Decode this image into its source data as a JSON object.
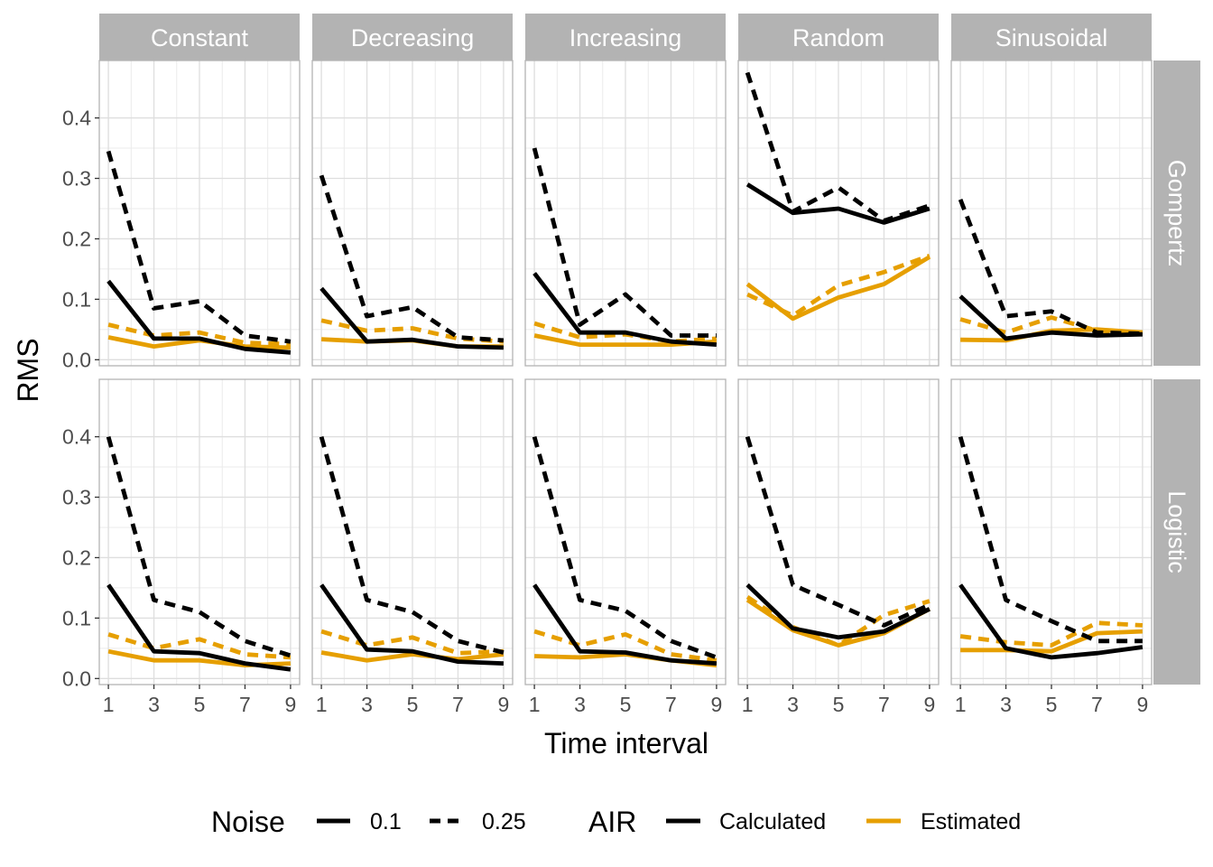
{
  "chart_data": {
    "type": "line",
    "xlabel": "Time interval",
    "ylabel": "RMS",
    "x": [
      1,
      3,
      5,
      7,
      9
    ],
    "x_ticks": [
      "1",
      "3",
      "5",
      "7",
      "9"
    ],
    "xlim": [
      0.6,
      9.4
    ],
    "y_ticks": [
      "0.0",
      "0.1",
      "0.2",
      "0.3",
      "0.4"
    ],
    "ylim": [
      -0.01,
      0.495
    ],
    "grid": true,
    "columns": [
      "Constant",
      "Decreasing",
      "Increasing",
      "Random",
      "Sinusoidal"
    ],
    "rows": [
      "Gompertz",
      "Logistic"
    ],
    "legend": {
      "position": "bottom",
      "noise_title": "Noise",
      "noise_levels": [
        "0.1",
        "0.25"
      ],
      "air_title": "AIR",
      "air_levels": [
        "Calculated",
        "Estimated"
      ]
    },
    "colors": {
      "Calculated": "#000000",
      "Estimated": "#E69F00"
    },
    "panels": [
      {
        "row": "Gompertz",
        "column": "Constant",
        "series": [
          {
            "noise": "0.1",
            "air": "Calculated",
            "values": [
              0.13,
              0.035,
              0.035,
              0.018,
              0.012
            ]
          },
          {
            "noise": "0.25",
            "air": "Calculated",
            "values": [
              0.345,
              0.085,
              0.097,
              0.04,
              0.03
            ]
          },
          {
            "noise": "0.1",
            "air": "Estimated",
            "values": [
              0.037,
              0.022,
              0.032,
              0.022,
              0.02
            ]
          },
          {
            "noise": "0.25",
            "air": "Estimated",
            "values": [
              0.058,
              0.04,
              0.045,
              0.028,
              0.026
            ]
          }
        ]
      },
      {
        "row": "Gompertz",
        "column": "Decreasing",
        "series": [
          {
            "noise": "0.1",
            "air": "Calculated",
            "values": [
              0.118,
              0.03,
              0.033,
              0.022,
              0.02
            ]
          },
          {
            "noise": "0.25",
            "air": "Calculated",
            "values": [
              0.305,
              0.072,
              0.087,
              0.037,
              0.032
            ]
          },
          {
            "noise": "0.1",
            "air": "Estimated",
            "values": [
              0.034,
              0.03,
              0.032,
              0.022,
              0.022
            ]
          },
          {
            "noise": "0.25",
            "air": "Estimated",
            "values": [
              0.065,
              0.048,
              0.052,
              0.035,
              0.03
            ]
          }
        ]
      },
      {
        "row": "Gompertz",
        "column": "Increasing",
        "series": [
          {
            "noise": "0.1",
            "air": "Calculated",
            "values": [
              0.143,
              0.045,
              0.045,
              0.03,
              0.025
            ]
          },
          {
            "noise": "0.25",
            "air": "Calculated",
            "values": [
              0.35,
              0.058,
              0.108,
              0.04,
              0.04
            ]
          },
          {
            "noise": "0.1",
            "air": "Estimated",
            "values": [
              0.04,
              0.025,
              0.025,
              0.025,
              0.03
            ]
          },
          {
            "noise": "0.25",
            "air": "Estimated",
            "values": [
              0.06,
              0.037,
              0.042,
              0.03,
              0.035
            ]
          }
        ]
      },
      {
        "row": "Gompertz",
        "column": "Random",
        "series": [
          {
            "noise": "0.1",
            "air": "Calculated",
            "values": [
              0.29,
              0.243,
              0.25,
              0.227,
              0.25
            ]
          },
          {
            "noise": "0.25",
            "air": "Calculated",
            "values": [
              0.475,
              0.245,
              0.285,
              0.23,
              0.255
            ]
          },
          {
            "noise": "0.1",
            "air": "Estimated",
            "values": [
              0.125,
              0.068,
              0.103,
              0.125,
              0.17
            ]
          },
          {
            "noise": "0.25",
            "air": "Estimated",
            "values": [
              0.108,
              0.073,
              0.123,
              0.145,
              0.172
            ]
          }
        ]
      },
      {
        "row": "Gompertz",
        "column": "Sinusoidal",
        "series": [
          {
            "noise": "0.1",
            "air": "Calculated",
            "values": [
              0.105,
              0.035,
              0.045,
              0.04,
              0.042
            ]
          },
          {
            "noise": "0.25",
            "air": "Calculated",
            "values": [
              0.265,
              0.072,
              0.08,
              0.045,
              0.043
            ]
          },
          {
            "noise": "0.1",
            "air": "Estimated",
            "values": [
              0.033,
              0.032,
              0.048,
              0.05,
              0.045
            ]
          },
          {
            "noise": "0.25",
            "air": "Estimated",
            "values": [
              0.067,
              0.045,
              0.07,
              0.048,
              0.045
            ]
          }
        ]
      },
      {
        "row": "Logistic",
        "column": "Constant",
        "series": [
          {
            "noise": "0.1",
            "air": "Calculated",
            "values": [
              0.155,
              0.045,
              0.042,
              0.025,
              0.015
            ]
          },
          {
            "noise": "0.25",
            "air": "Calculated",
            "values": [
              0.4,
              0.13,
              0.11,
              0.062,
              0.038
            ]
          },
          {
            "noise": "0.1",
            "air": "Estimated",
            "values": [
              0.045,
              0.03,
              0.03,
              0.022,
              0.025
            ]
          },
          {
            "noise": "0.25",
            "air": "Estimated",
            "values": [
              0.073,
              0.05,
              0.065,
              0.04,
              0.035
            ]
          }
        ]
      },
      {
        "row": "Logistic",
        "column": "Decreasing",
        "series": [
          {
            "noise": "0.1",
            "air": "Calculated",
            "values": [
              0.155,
              0.048,
              0.045,
              0.028,
              0.025
            ]
          },
          {
            "noise": "0.25",
            "air": "Calculated",
            "values": [
              0.4,
              0.13,
              0.11,
              0.062,
              0.043
            ]
          },
          {
            "noise": "0.1",
            "air": "Estimated",
            "values": [
              0.043,
              0.03,
              0.04,
              0.032,
              0.04
            ]
          },
          {
            "noise": "0.25",
            "air": "Estimated",
            "values": [
              0.078,
              0.055,
              0.068,
              0.042,
              0.045
            ]
          }
        ]
      },
      {
        "row": "Logistic",
        "column": "Increasing",
        "series": [
          {
            "noise": "0.1",
            "air": "Calculated",
            "values": [
              0.155,
              0.045,
              0.043,
              0.03,
              0.025
            ]
          },
          {
            "noise": "0.25",
            "air": "Calculated",
            "values": [
              0.4,
              0.13,
              0.112,
              0.062,
              0.035
            ]
          },
          {
            "noise": "0.1",
            "air": "Estimated",
            "values": [
              0.037,
              0.035,
              0.04,
              0.03,
              0.022
            ]
          },
          {
            "noise": "0.25",
            "air": "Estimated",
            "values": [
              0.078,
              0.055,
              0.073,
              0.04,
              0.03
            ]
          }
        ]
      },
      {
        "row": "Logistic",
        "column": "Random",
        "series": [
          {
            "noise": "0.1",
            "air": "Calculated",
            "values": [
              0.155,
              0.083,
              0.068,
              0.078,
              0.115
            ]
          },
          {
            "noise": "0.25",
            "air": "Calculated",
            "values": [
              0.4,
              0.155,
              0.122,
              0.088,
              0.122
            ]
          },
          {
            "noise": "0.1",
            "air": "Estimated",
            "values": [
              0.13,
              0.08,
              0.055,
              0.075,
              0.115
            ]
          },
          {
            "noise": "0.25",
            "air": "Estimated",
            "values": [
              0.135,
              0.085,
              0.055,
              0.105,
              0.128
            ]
          }
        ]
      },
      {
        "row": "Logistic",
        "column": "Sinusoidal",
        "series": [
          {
            "noise": "0.1",
            "air": "Calculated",
            "values": [
              0.155,
              0.05,
              0.035,
              0.042,
              0.052
            ]
          },
          {
            "noise": "0.25",
            "air": "Calculated",
            "values": [
              0.4,
              0.13,
              0.095,
              0.062,
              0.062
            ]
          },
          {
            "noise": "0.1",
            "air": "Estimated",
            "values": [
              0.047,
              0.047,
              0.045,
              0.075,
              0.078
            ]
          },
          {
            "noise": "0.25",
            "air": "Estimated",
            "values": [
              0.07,
              0.06,
              0.055,
              0.092,
              0.088
            ]
          }
        ]
      }
    ]
  }
}
